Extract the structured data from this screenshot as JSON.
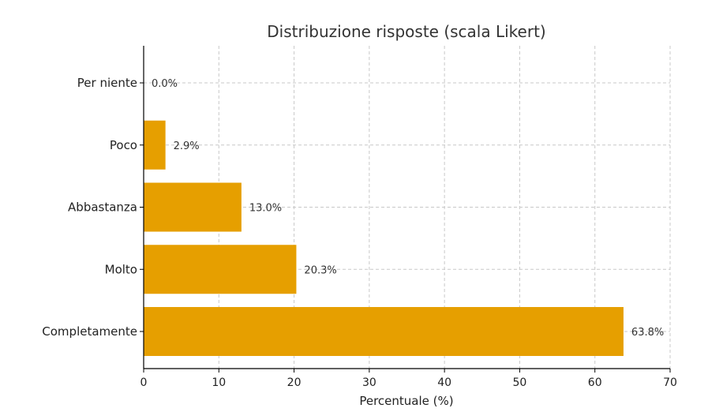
{
  "chart_data": {
    "type": "bar",
    "orientation": "horizontal",
    "title": "Distribuzione risposte (scala Likert)",
    "xlabel": "Percentuale (%)",
    "ylabel": "",
    "xlim": [
      0,
      70
    ],
    "xticks": [
      0,
      10,
      20,
      30,
      40,
      50,
      60,
      70
    ],
    "grid": true,
    "bar_color": "#E69F00",
    "categories": [
      "Per niente",
      "Poco",
      "Abbastanza",
      "Molto",
      "Completamente"
    ],
    "values": [
      0.0,
      2.9,
      13.0,
      20.3,
      63.8
    ],
    "value_labels": [
      "0.0%",
      "2.9%",
      "13.0%",
      "20.3%",
      "63.8%"
    ]
  }
}
